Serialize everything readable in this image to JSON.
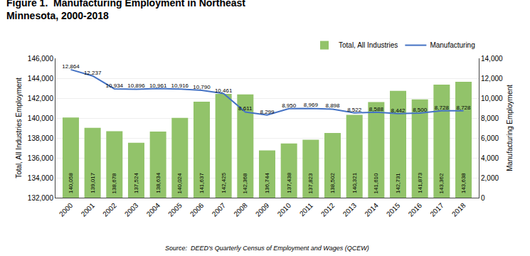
{
  "chart_data": {
    "type": "bar",
    "title": "Figure 1.  Manufacturing Employment in Northeast",
    "subtitle": "Minnesota, 2000-2018",
    "annotations": [
      "Source:  DEED's Quarterly Census of Employment and Wages (QCEW)"
    ],
    "x": [
      2000,
      2001,
      2002,
      2003,
      2004,
      2005,
      2006,
      2007,
      2008,
      2009,
      2010,
      2011,
      2012,
      2013,
      2014,
      2015,
      2016,
      2017,
      2018
    ],
    "xlim": [
      1999.3,
      2018.7
    ],
    "xticks": [
      2000,
      2001,
      2002,
      2003,
      2004,
      2005,
      2006,
      2007,
      2008,
      2009,
      2010,
      2011,
      2012,
      2013,
      2014,
      2015,
      2016,
      2017,
      2018
    ],
    "ylabel": "Total, All Industries Employment",
    "y2label": "Manufacturing Employment",
    "ylim": [
      132000,
      146000
    ],
    "yticks": [
      {
        "value": 132000,
        "label": "132,000"
      },
      {
        "value": 134000,
        "label": "134,000"
      },
      {
        "value": 136000,
        "label": "136,000"
      },
      {
        "value": 138000,
        "label": "138,000"
      },
      {
        "value": 140000,
        "label": "140,000"
      },
      {
        "value": 142000,
        "label": "142,000"
      },
      {
        "value": 144000,
        "label": "144,000"
      },
      {
        "value": 146000,
        "label": "146,000"
      }
    ],
    "y2lim": [
      0,
      14000
    ],
    "y2ticks": [
      0,
      {
        "value": 2000,
        "label": "2,000"
      },
      {
        "value": 4000,
        "label": "4,000"
      },
      {
        "value": 6000,
        "label": "6,000"
      },
      {
        "value": 8000,
        "label": "8,000"
      },
      {
        "value": 10000,
        "label": "10,000"
      },
      {
        "value": 12000,
        "label": "12,000"
      },
      {
        "value": 14000,
        "label": "14,000"
      }
    ],
    "grid": true,
    "legend": "upper right",
    "data_labels": true,
    "series": [
      {
        "name": "Total, All Industries",
        "type": "bar",
        "color": "#92c36a",
        "values": [
          140058,
          139017,
          138678,
          137524,
          138634,
          140024,
          141637,
          142425,
          142368,
          136744,
          137438,
          137823,
          138502,
          140321,
          141610,
          142731,
          141873,
          143362,
          143638
        ],
        "value_labels": [
          "140,058",
          "139,017",
          "138,678",
          "137,524",
          "138,634",
          "140,024",
          "141,637",
          "142,425",
          "142,368",
          "136,744",
          "137,438",
          "137,823",
          "138,502",
          "140,321",
          "141,610",
          "142,731",
          "141,873",
          "143,362",
          "143,638"
        ]
      },
      {
        "name": "Manufacturing",
        "type": "line",
        "axis": "y2",
        "color": "#4472c4",
        "values": [
          12864,
          12237,
          10934,
          10896,
          10961,
          10916,
          10790,
          10461,
          8611,
          8299,
          8950,
          8969,
          8898,
          8522,
          8588,
          8442,
          8500,
          8728,
          8728
        ],
        "value_labels": [
          "12,864",
          "12,237",
          "10,934",
          "10,896",
          "10,961",
          "10,916",
          "10,790",
          "10,461",
          "8,611",
          "8,299",
          "8,950",
          "8,969",
          "8,898",
          "8,522",
          "8,588",
          "8,442",
          "8,500",
          "8,728",
          "8,728"
        ]
      }
    ]
  }
}
